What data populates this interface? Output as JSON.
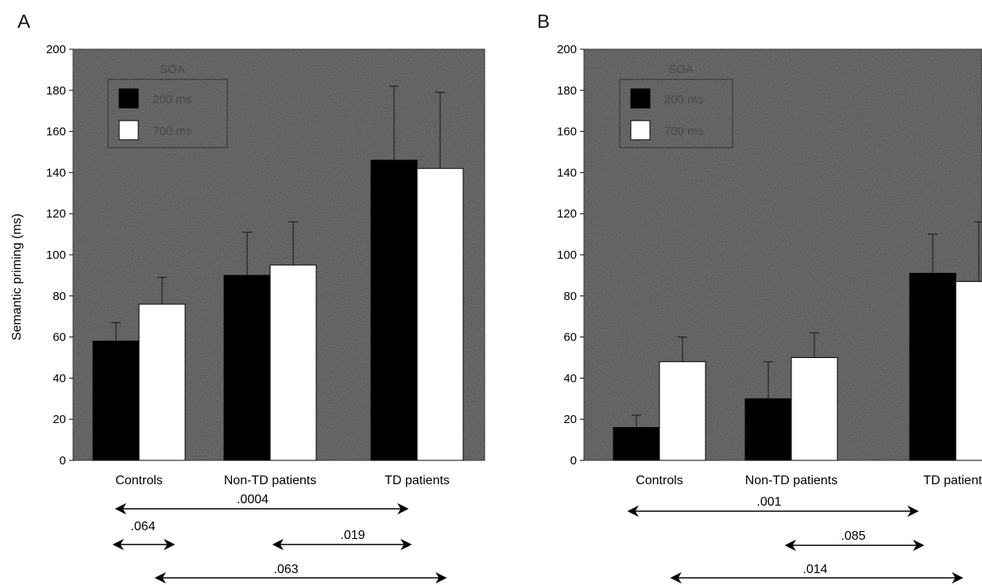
{
  "chart_data": [
    {
      "type": "bar",
      "panel": "A",
      "ylabel": "Semantic priming (ms)",
      "ylim": [
        0,
        200
      ],
      "yticks": [
        0,
        20,
        40,
        60,
        80,
        100,
        120,
        140,
        160,
        180,
        200
      ],
      "categories": [
        "Controls",
        "Non-TD patients",
        "TD patients"
      ],
      "legend": {
        "title": "SOA",
        "placement": "top-left"
      },
      "series": [
        {
          "name": "200 ms",
          "color": "#000000",
          "values": [
            58,
            90,
            146
          ],
          "error": [
            9,
            21,
            36
          ]
        },
        {
          "name": "700 ms",
          "color": "#ffffff",
          "values": [
            76,
            95,
            142
          ],
          "error": [
            13,
            21,
            37
          ]
        }
      ],
      "comparisons": [
        {
          "label": ".0004",
          "from": "Controls",
          "to": "TD patients"
        },
        {
          "label": ".064",
          "from": "Controls",
          "to": "Controls"
        },
        {
          "label": ".019",
          "from": "Non-TD patients",
          "to": "TD patients"
        },
        {
          "label": ".063",
          "from": "Controls",
          "to": "TD patients"
        }
      ]
    },
    {
      "type": "bar",
      "panel": "B",
      "ylabel": "",
      "ylim": [
        0,
        200
      ],
      "yticks": [
        0,
        20,
        40,
        60,
        80,
        100,
        120,
        140,
        160,
        180,
        200
      ],
      "categories": [
        "Controls",
        "Non-TD patients",
        "TD patients"
      ],
      "legend": {
        "title": "SOA",
        "placement": "top-left"
      },
      "series": [
        {
          "name": "200 ms",
          "color": "#000000",
          "values": [
            16,
            30,
            91
          ],
          "error": [
            6,
            18,
            19
          ]
        },
        {
          "name": "700 ms",
          "color": "#ffffff",
          "values": [
            48,
            50,
            87
          ],
          "error": [
            12,
            12,
            29
          ]
        }
      ],
      "comparisons": [
        {
          "label": ".001",
          "from": "Controls",
          "to": "TD patients"
        },
        {
          "label": ".085",
          "from": "Non-TD patients",
          "to": "TD patients"
        },
        {
          "label": ".014",
          "from": "Controls",
          "to": "TD patients"
        }
      ]
    }
  ]
}
